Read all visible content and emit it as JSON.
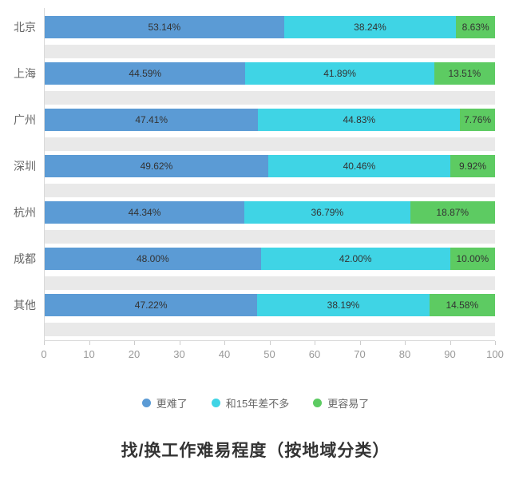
{
  "chart_data": {
    "type": "bar",
    "orientation": "horizontal",
    "stacked": true,
    "title": "找/换工作难易程度（按地域分类）",
    "categories": [
      "北京",
      "上海",
      "广州",
      "深圳",
      "杭州",
      "成都",
      "其他"
    ],
    "series": [
      {
        "key": "harder",
        "name": "更难了",
        "color": "#5b9bd5",
        "values": [
          53.14,
          44.59,
          47.41,
          49.62,
          44.34,
          48.0,
          47.22
        ]
      },
      {
        "key": "same-as-2015",
        "name": "和15年差不多",
        "color": "#3fd4e5",
        "values": [
          38.24,
          41.89,
          44.83,
          40.46,
          36.79,
          42.0,
          38.19
        ]
      },
      {
        "key": "easier",
        "name": "更容易了",
        "color": "#5dcb62",
        "values": [
          8.63,
          13.51,
          7.76,
          9.92,
          18.87,
          10.0,
          14.58
        ]
      }
    ],
    "value_suffix": "%",
    "x_ticks": [
      0,
      10,
      20,
      30,
      40,
      50,
      60,
      70,
      80,
      90,
      100
    ],
    "xlim": [
      0,
      100
    ],
    "grid": false,
    "legend_position": "bottom",
    "colors": {
      "stripe": "#e9e9e9",
      "axis": "#d9d9d9",
      "tick_label": "#999999",
      "category_label": "#666666",
      "value_label": "#333333"
    }
  }
}
